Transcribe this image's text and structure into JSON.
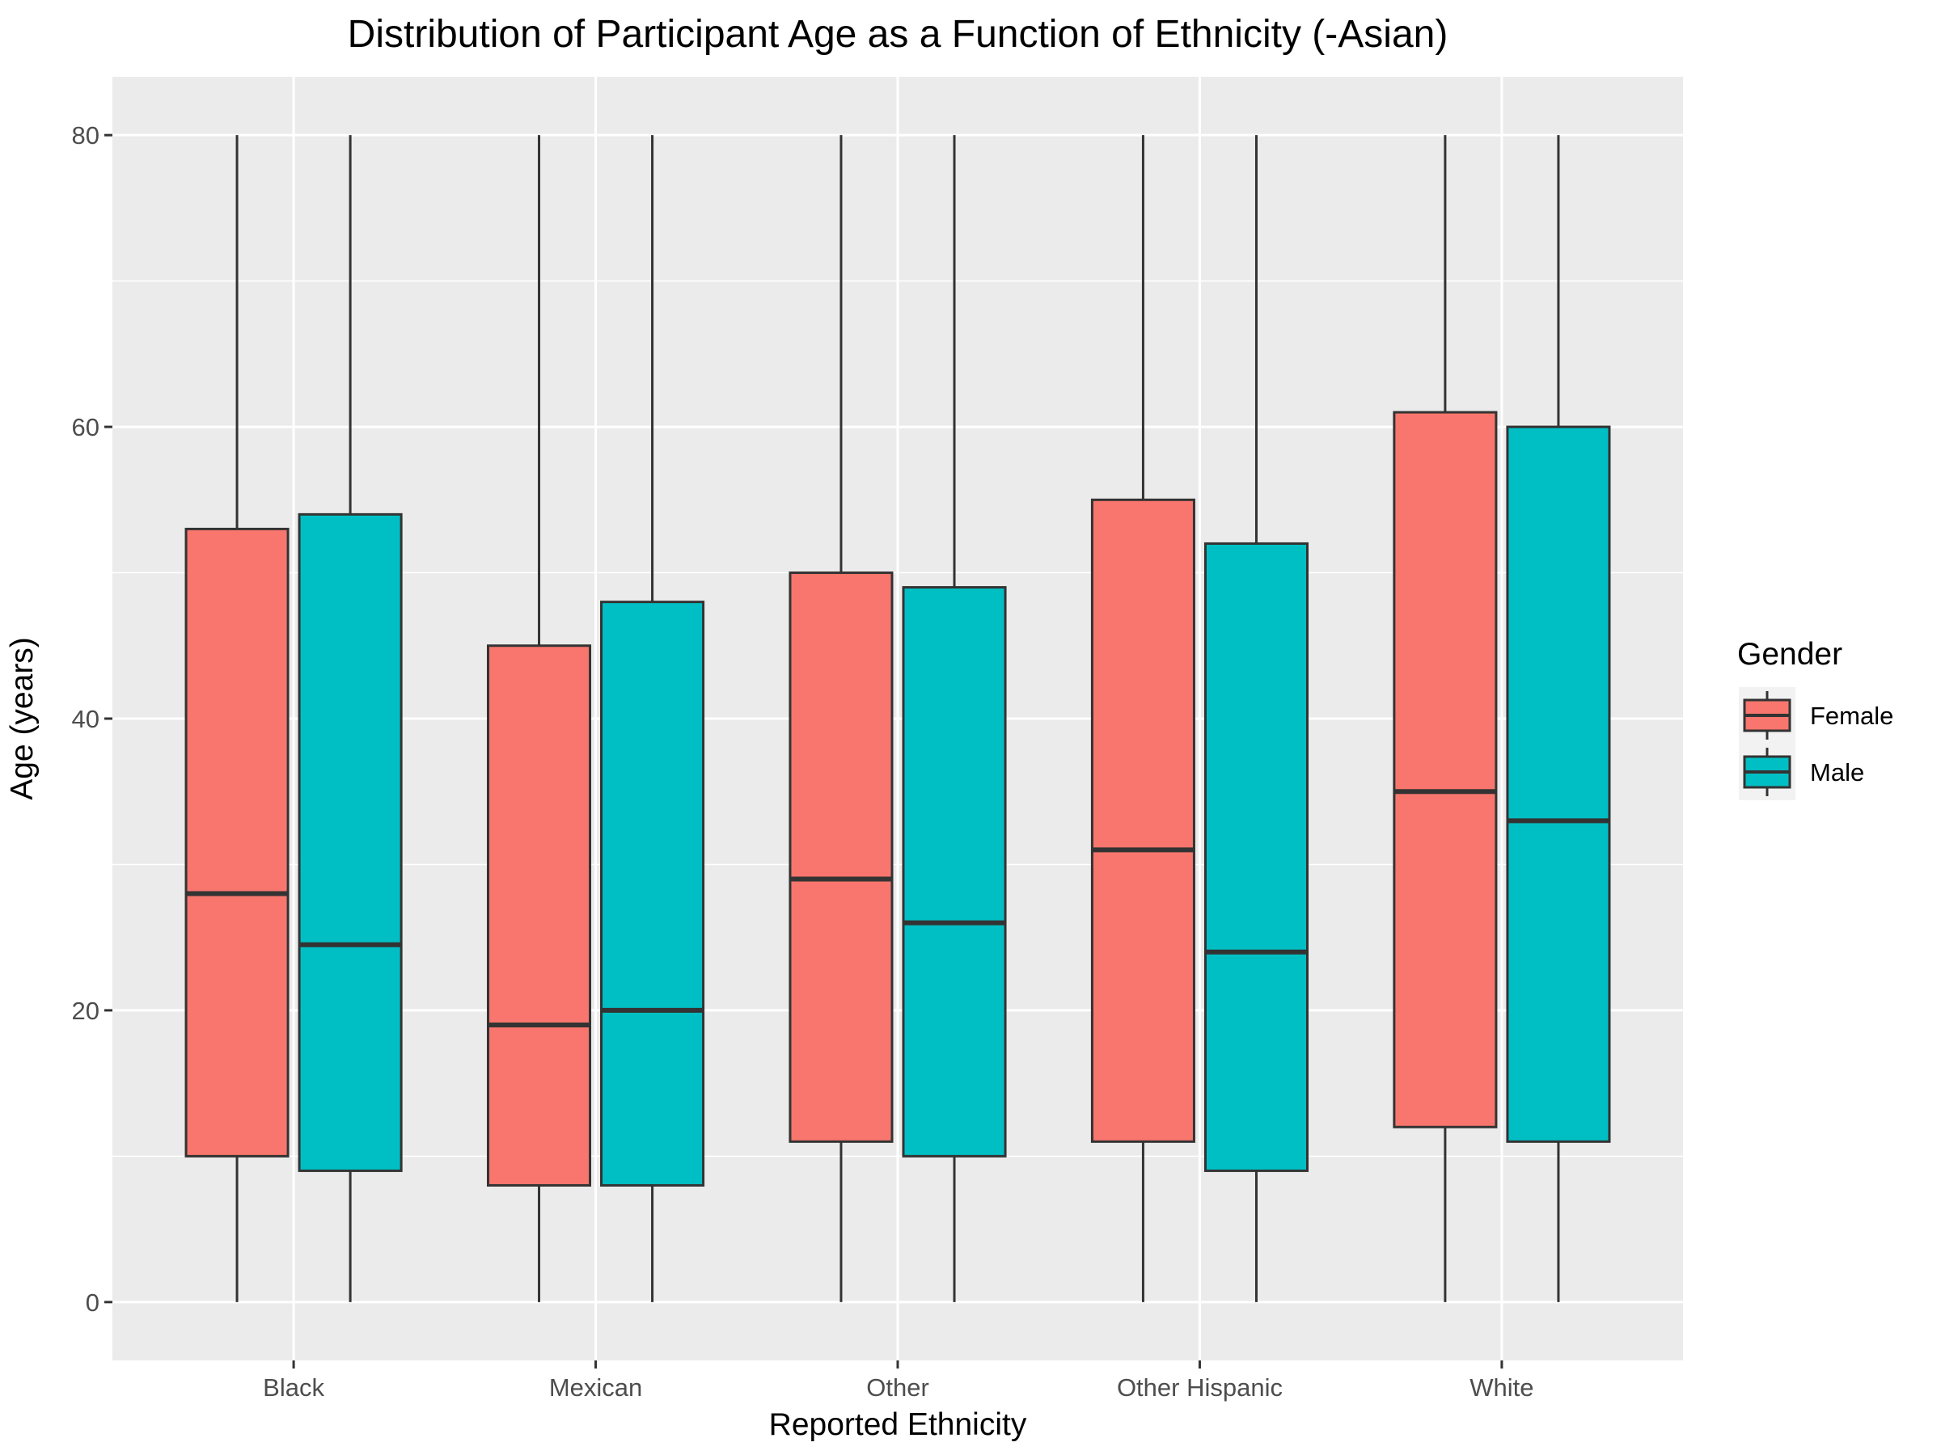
{
  "chart_data": {
    "type": "boxplot",
    "title": "Distribution of Participant Age as a Function of Ethnicity (-Asian)",
    "xlabel": "Reported Ethnicity",
    "ylabel": "Age (years)",
    "ylim": [
      -4,
      84
    ],
    "yticks": [
      0,
      20,
      40,
      60,
      80
    ],
    "grid": true,
    "legend": {
      "title": "Gender",
      "position": "right",
      "entries": [
        {
          "name": "Female",
          "color": "#F8766D"
        },
        {
          "name": "Male",
          "color": "#00BFC4"
        }
      ]
    },
    "categories": [
      "Black",
      "Mexican",
      "Other",
      "Other Hispanic",
      "White"
    ],
    "series": [
      {
        "name": "Female",
        "color": "#F8766D",
        "boxes": [
          {
            "min": 0,
            "q1": 10,
            "median": 28,
            "q3": 53,
            "max": 80
          },
          {
            "min": 0,
            "q1": 8,
            "median": 19,
            "q3": 45,
            "max": 80
          },
          {
            "min": 0,
            "q1": 11,
            "median": 29,
            "q3": 50,
            "max": 80
          },
          {
            "min": 0,
            "q1": 11,
            "median": 31,
            "q3": 55,
            "max": 80
          },
          {
            "min": 0,
            "q1": 12,
            "median": 35,
            "q3": 61,
            "max": 80
          }
        ]
      },
      {
        "name": "Male",
        "color": "#00BFC4",
        "boxes": [
          {
            "min": 0,
            "q1": 9,
            "median": 24.5,
            "q3": 54,
            "max": 80
          },
          {
            "min": 0,
            "q1": 8,
            "median": 20,
            "q3": 48,
            "max": 80
          },
          {
            "min": 0,
            "q1": 10,
            "median": 26,
            "q3": 49,
            "max": 80
          },
          {
            "min": 0,
            "q1": 9,
            "median": 24,
            "q3": 52,
            "max": 80
          },
          {
            "min": 0,
            "q1": 11,
            "median": 33,
            "q3": 60,
            "max": 80
          }
        ]
      }
    ]
  }
}
